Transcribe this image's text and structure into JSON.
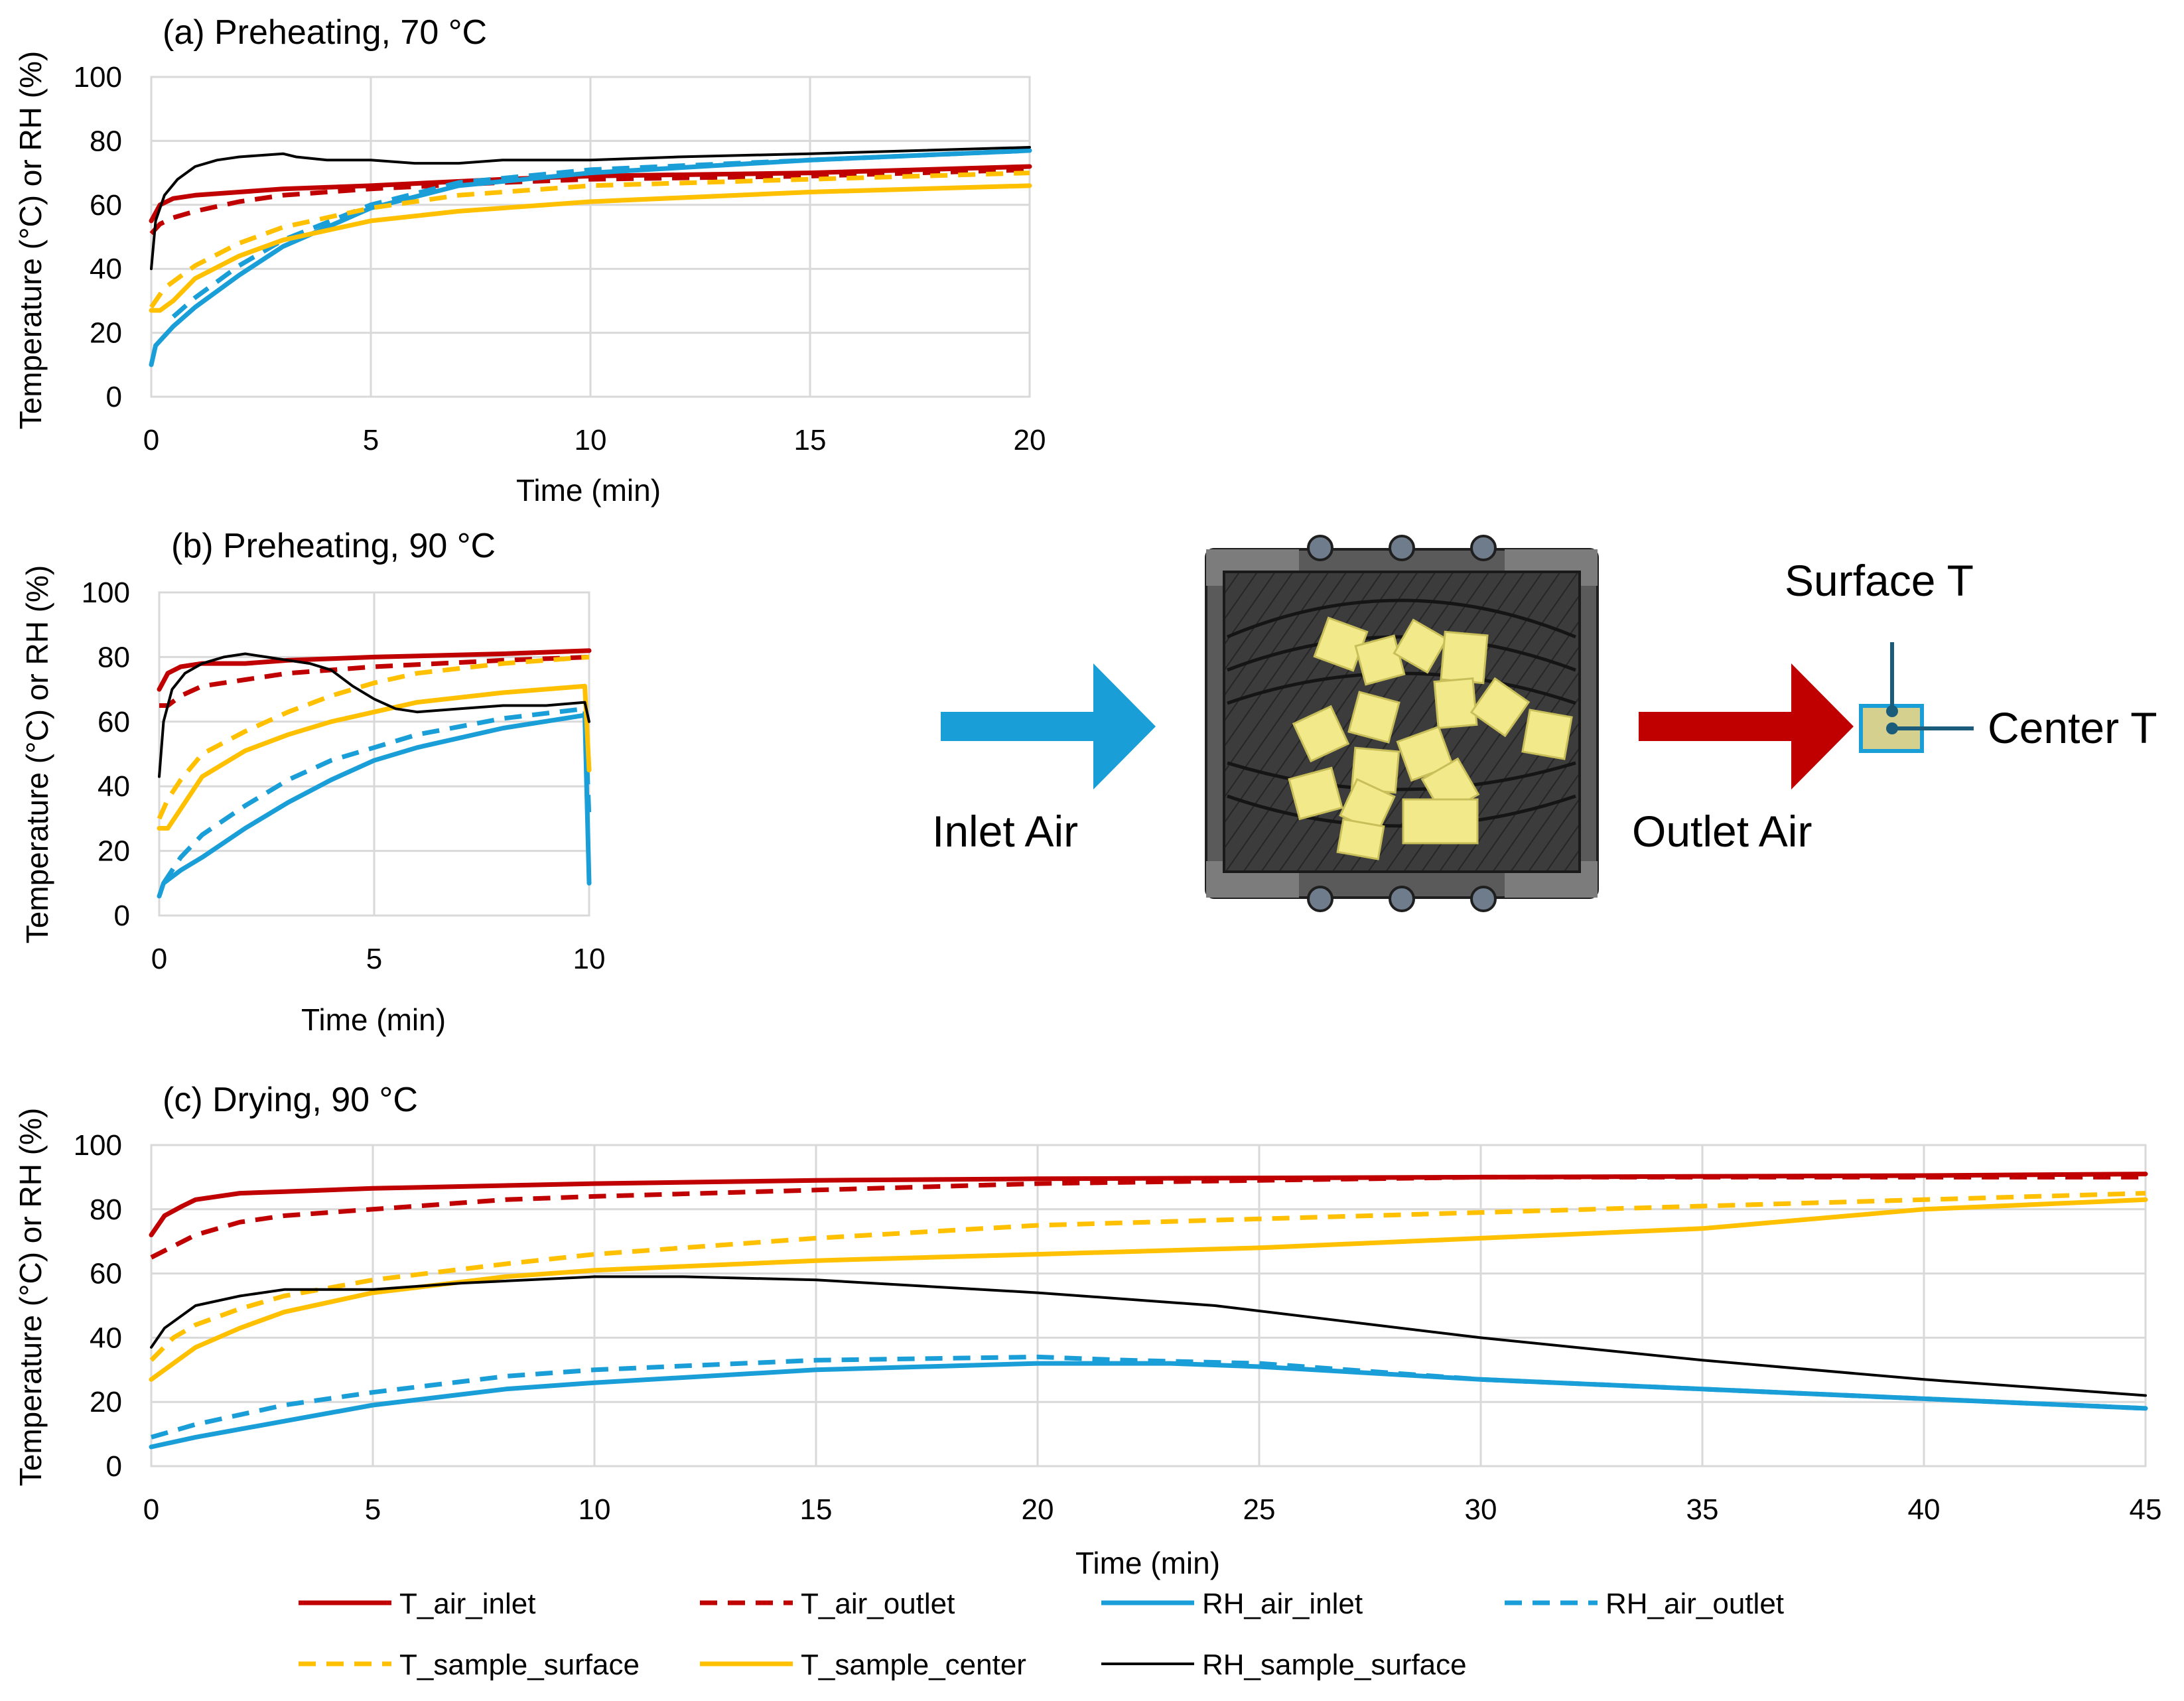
{
  "colors": {
    "T_air": "#C00000",
    "RH_air": "#199ED8",
    "T_sample": "#FFC000",
    "RH_sample": "#000000",
    "grid": "#D9D9D9"
  },
  "chart_data": [
    {
      "id": "a",
      "type": "line",
      "title": "(a) Preheating, 70 °C",
      "xlabel": "Time (min)",
      "ylabel": "Temperature (°C) or RH (%)",
      "xlim": [
        0,
        20
      ],
      "ylim": [
        0,
        100
      ],
      "xticks": [
        0,
        5,
        10,
        15,
        20
      ],
      "yticks": [
        0,
        20,
        40,
        60,
        80,
        100
      ],
      "grid": true,
      "series": [
        {
          "name": "T_air_inlet",
          "color": "#C00000",
          "dash": "solid",
          "x": [
            0,
            0.2,
            0.5,
            1,
            2,
            3,
            5,
            8,
            10,
            15,
            20
          ],
          "y": [
            55,
            60,
            62,
            63,
            64,
            65,
            66,
            68,
            69,
            70,
            72
          ]
        },
        {
          "name": "T_air_outlet",
          "color": "#C00000",
          "dash": "dashed",
          "x": [
            0,
            0.2,
            0.5,
            1,
            2,
            3,
            5,
            8,
            10,
            15,
            20
          ],
          "y": [
            51,
            54,
            56,
            58,
            61,
            63,
            65,
            67,
            68,
            69,
            71
          ]
        },
        {
          "name": "RH_air_inlet",
          "color": "#199ED8",
          "dash": "solid",
          "x": [
            0,
            0.1,
            0.5,
            1,
            2,
            3,
            5,
            7,
            10,
            15,
            20
          ],
          "y": [
            10,
            16,
            22,
            28,
            38,
            47,
            59,
            66,
            70,
            74,
            77
          ]
        },
        {
          "name": "RH_air_outlet",
          "color": "#199ED8",
          "dash": "dashed",
          "x": [
            0.5,
            1,
            2,
            3,
            5,
            7,
            10,
            15,
            20
          ],
          "y": [
            25,
            31,
            41,
            49,
            60,
            67,
            71,
            74,
            77
          ]
        },
        {
          "name": "T_sample_surface",
          "color": "#FFC000",
          "dash": "dashed",
          "x": [
            0,
            0.3,
            1,
            2,
            3,
            5,
            7,
            10,
            15,
            20
          ],
          "y": [
            28,
            34,
            41,
            48,
            53,
            59,
            63,
            66,
            68,
            70
          ]
        },
        {
          "name": "T_sample_center",
          "color": "#FFC000",
          "dash": "solid",
          "x": [
            0,
            0.2,
            0.5,
            1,
            2,
            3,
            5,
            7,
            10,
            15,
            20
          ],
          "y": [
            27,
            27,
            30,
            37,
            44,
            49,
            55,
            58,
            61,
            64,
            66
          ]
        },
        {
          "name": "RH_sample_surface",
          "color": "#000000",
          "dash": "solid",
          "x": [
            0,
            0.1,
            0.3,
            0.6,
            1,
            1.5,
            2,
            2.5,
            3,
            3.3,
            4,
            5,
            6,
            7,
            8,
            10,
            12,
            15,
            20
          ],
          "y": [
            40,
            55,
            63,
            68,
            72,
            74,
            75,
            75.5,
            76,
            75,
            74,
            74,
            73,
            73,
            74,
            74,
            75,
            76,
            78
          ]
        }
      ]
    },
    {
      "id": "b",
      "type": "line",
      "title": "(b) Preheating, 90 °C",
      "xlabel": "Time (min)",
      "ylabel": "Temperature (°C) or RH (%)",
      "xlim": [
        0,
        10
      ],
      "ylim": [
        0,
        100
      ],
      "xticks": [
        0,
        5,
        10
      ],
      "yticks": [
        0,
        20,
        40,
        60,
        80,
        100
      ],
      "grid": true,
      "series": [
        {
          "name": "T_air_inlet",
          "color": "#C00000",
          "dash": "solid",
          "x": [
            0,
            0.2,
            0.5,
            1,
            2,
            3,
            5,
            8,
            10
          ],
          "y": [
            70,
            75,
            77,
            78,
            78,
            79,
            80,
            81,
            82
          ]
        },
        {
          "name": "T_air_outlet",
          "color": "#C00000",
          "dash": "dashed",
          "x": [
            0,
            0.2,
            0.5,
            1,
            2,
            3,
            5,
            8,
            10
          ],
          "y": [
            65,
            65,
            68,
            71,
            73,
            75,
            77,
            79,
            80
          ]
        },
        {
          "name": "RH_air_inlet",
          "color": "#199ED8",
          "dash": "solid",
          "x": [
            0,
            0.1,
            0.5,
            1,
            2,
            3,
            4,
            5,
            6,
            8,
            9.9,
            10
          ],
          "y": [
            6,
            10,
            14,
            18,
            27,
            35,
            42,
            48,
            52,
            58,
            62,
            10
          ]
        },
        {
          "name": "RH_air_outlet",
          "color": "#199ED8",
          "dash": "dashed",
          "x": [
            0.1,
            0.5,
            1,
            2,
            3,
            4,
            5,
            6,
            8,
            9.9,
            10
          ],
          "y": [
            10,
            18,
            25,
            34,
            42,
            48,
            52,
            56,
            61,
            64,
            30
          ]
        },
        {
          "name": "T_sample_surface",
          "color": "#FFC000",
          "dash": "dashed",
          "x": [
            0,
            0.2,
            0.5,
            1,
            2,
            3,
            4,
            5,
            6,
            8,
            10
          ],
          "y": [
            30,
            36,
            42,
            50,
            57,
            63,
            68,
            72,
            75,
            78,
            80
          ]
        },
        {
          "name": "T_sample_center",
          "color": "#FFC000",
          "dash": "solid",
          "x": [
            0,
            0.2,
            0.5,
            1,
            2,
            3,
            4,
            5,
            6,
            8,
            9.9,
            10
          ],
          "y": [
            27,
            27,
            33,
            43,
            51,
            56,
            60,
            63,
            66,
            69,
            71,
            45
          ]
        },
        {
          "name": "RH_sample_surface",
          "color": "#000000",
          "dash": "solid",
          "x": [
            0,
            0.1,
            0.3,
            0.6,
            1,
            1.5,
            2,
            2.5,
            3,
            3.5,
            4,
            4.5,
            5,
            5.5,
            6,
            7,
            8,
            9,
            9.9,
            10
          ],
          "y": [
            43,
            60,
            70,
            75,
            78,
            80,
            81,
            80,
            79,
            78,
            76,
            71,
            67,
            64,
            63,
            64,
            65,
            65,
            66,
            60
          ]
        }
      ]
    },
    {
      "id": "c",
      "type": "line",
      "title": "(c) Drying, 90 °C",
      "xlabel": "Time (min)",
      "ylabel": "Temperature (°C) or RH (%)",
      "xlim": [
        0,
        45
      ],
      "ylim": [
        0,
        100
      ],
      "xticks": [
        0,
        5,
        10,
        15,
        20,
        25,
        30,
        35,
        40,
        45
      ],
      "yticks": [
        0,
        20,
        40,
        60,
        80,
        100
      ],
      "grid": true,
      "series": [
        {
          "name": "T_air_inlet",
          "color": "#C00000",
          "dash": "solid",
          "x": [
            0,
            0.3,
            0.7,
            1,
            2,
            3,
            5,
            10,
            15,
            20,
            30,
            40,
            45
          ],
          "y": [
            72,
            78,
            81,
            83,
            85,
            85.5,
            86.5,
            88,
            89,
            89.5,
            90,
            90.5,
            91
          ]
        },
        {
          "name": "T_air_outlet",
          "color": "#C00000",
          "dash": "dashed",
          "x": [
            0,
            1,
            2,
            3,
            5,
            8,
            10,
            15,
            20,
            25,
            30,
            40,
            45
          ],
          "y": [
            65,
            72,
            76,
            78,
            80,
            83,
            84,
            86,
            88,
            89,
            90,
            90,
            90
          ]
        },
        {
          "name": "RH_air_inlet",
          "color": "#199ED8",
          "dash": "solid",
          "x": [
            0,
            1,
            3,
            5,
            8,
            10,
            15,
            20,
            23,
            25,
            30,
            35,
            40,
            45
          ],
          "y": [
            6,
            9,
            14,
            19,
            24,
            26,
            30,
            32,
            32,
            31,
            27,
            24,
            21,
            18
          ]
        },
        {
          "name": "RH_air_outlet",
          "color": "#199ED8",
          "dash": "dashed",
          "x": [
            0,
            1,
            3,
            5,
            8,
            10,
            15,
            20,
            22,
            25,
            30,
            35,
            40,
            45
          ],
          "y": [
            9,
            13,
            19,
            23,
            28,
            30,
            33,
            34,
            33,
            32,
            27,
            24,
            21,
            18
          ]
        },
        {
          "name": "T_sample_surface",
          "color": "#FFC000",
          "dash": "dashed",
          "x": [
            0,
            0.5,
            1,
            2,
            3,
            5,
            8,
            10,
            15,
            20,
            25,
            30,
            35,
            40,
            45
          ],
          "y": [
            33,
            40,
            44,
            49,
            53,
            58,
            63,
            66,
            71,
            75,
            77,
            79,
            81,
            83,
            85
          ]
        },
        {
          "name": "T_sample_center",
          "color": "#FFC000",
          "dash": "solid",
          "x": [
            0,
            0.5,
            1,
            2,
            3,
            5,
            8,
            10,
            15,
            20,
            25,
            30,
            35,
            40,
            45
          ],
          "y": [
            27,
            32,
            37,
            43,
            48,
            54,
            59,
            61,
            64,
            66,
            68,
            71,
            74,
            80,
            83
          ]
        },
        {
          "name": "RH_sample_surface",
          "color": "#000000",
          "dash": "solid",
          "x": [
            0,
            0.3,
            0.7,
            1,
            2,
            3,
            4,
            5,
            7,
            10,
            12,
            15,
            20,
            24,
            27,
            30,
            35,
            40,
            45
          ],
          "y": [
            37,
            43,
            47,
            50,
            53,
            55,
            55,
            55,
            57,
            59,
            59,
            58,
            54,
            50,
            45,
            40,
            33,
            27,
            22
          ]
        }
      ]
    }
  ],
  "legend": [
    {
      "label": "T_air_inlet",
      "color": "#C00000",
      "dash": "solid"
    },
    {
      "label": "T_air_outlet",
      "color": "#C00000",
      "dash": "dashed"
    },
    {
      "label": "RH_air_inlet",
      "color": "#199ED8",
      "dash": "solid"
    },
    {
      "label": "RH_air_outlet",
      "color": "#199ED8",
      "dash": "dashed"
    },
    {
      "label": "T_sample_surface",
      "color": "#FFC000",
      "dash": "dashed"
    },
    {
      "label": "T_sample_center",
      "color": "#FFC000",
      "dash": "solid"
    },
    {
      "label": "RH_sample_surface",
      "color": "#000000",
      "dash": "solid"
    }
  ],
  "diagram": {
    "inlet_label": "Inlet Air",
    "outlet_label": "Outlet Air",
    "surface_label": "Surface T",
    "center_label": "Center T"
  }
}
